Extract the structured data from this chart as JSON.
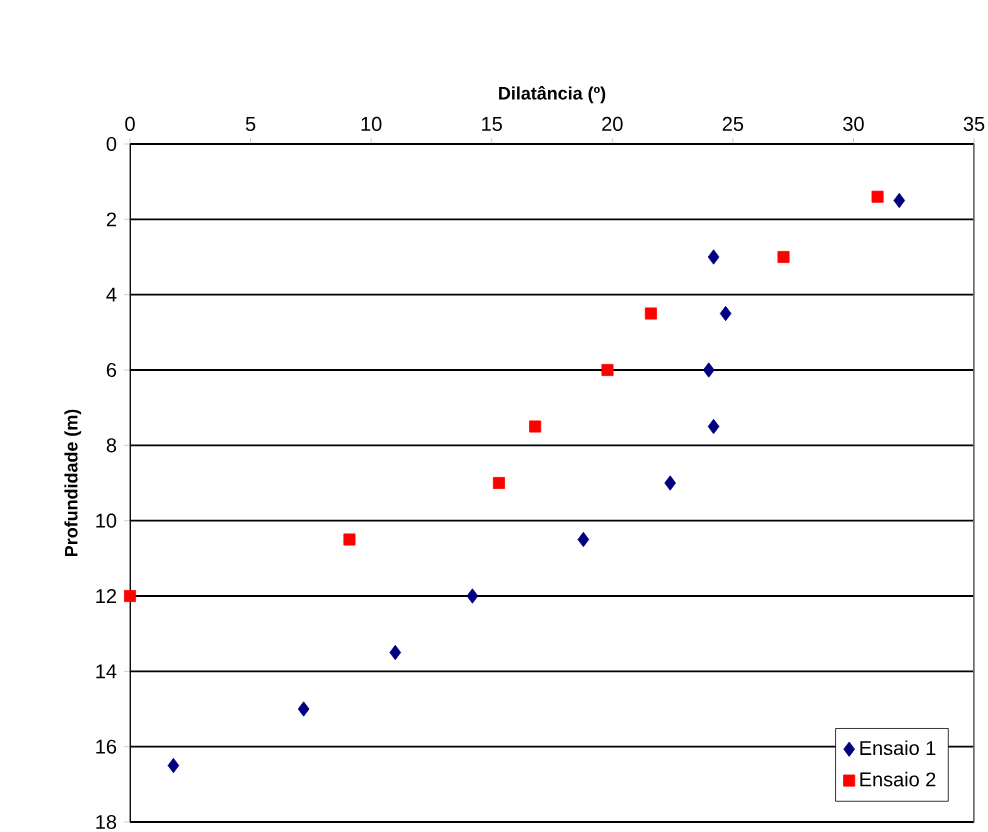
{
  "chart_data": {
    "type": "scatter",
    "xlabel": "Dilatância (º)",
    "ylabel": "Profundidade (m)",
    "xlim": [
      0,
      35
    ],
    "xticks": [
      0,
      5,
      10,
      15,
      20,
      25,
      30,
      35
    ],
    "ylim": [
      18,
      0
    ],
    "yticks": [
      0,
      2,
      4,
      6,
      8,
      10,
      12,
      14,
      16,
      18
    ],
    "grid": "y",
    "legend": "bottom right",
    "series": [
      {
        "name": "Ensaio 1",
        "color": "#000080",
        "marker": "diamond",
        "x": [
          31.9,
          24.2,
          24.7,
          24.0,
          24.2,
          22.4,
          18.8,
          14.2,
          11.0,
          7.2,
          1.8
        ],
        "values": [
          1.5,
          3,
          4.5,
          6,
          7.5,
          9,
          10.5,
          12,
          13.5,
          15,
          16.5
        ]
      },
      {
        "name": "Ensaio 2",
        "color": "#ff0000",
        "marker": "square",
        "x": [
          31.0,
          27.1,
          21.6,
          19.8,
          16.8,
          15.3,
          9.1,
          0
        ],
        "values": [
          1.4,
          3,
          4.5,
          6,
          7.5,
          9,
          10.5,
          12
        ]
      }
    ]
  }
}
